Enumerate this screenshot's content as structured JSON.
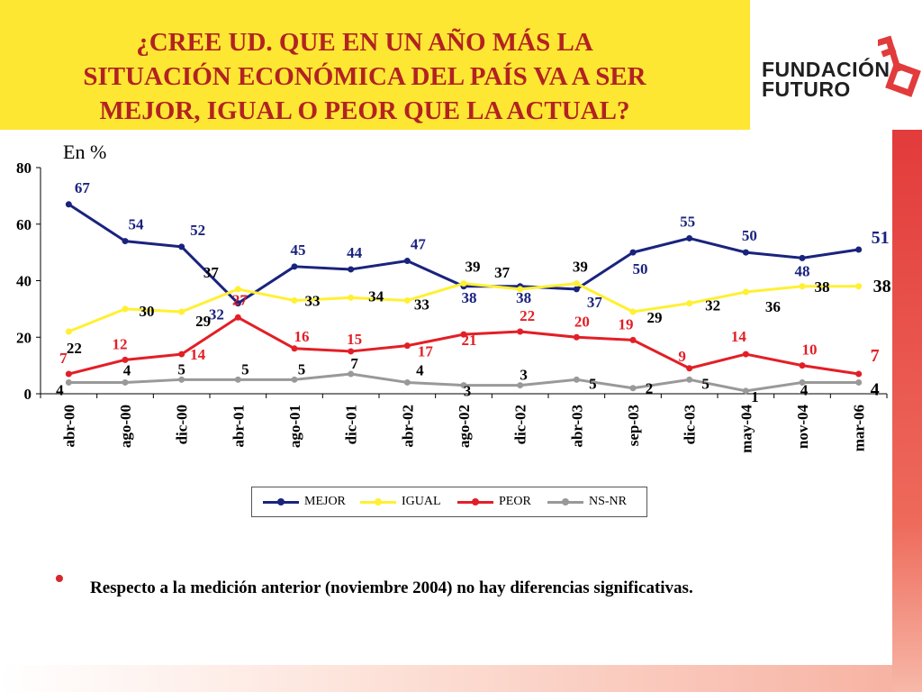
{
  "header": {
    "title_lines": [
      "¿CREE UD. QUE EN UN AÑO MÁS LA",
      "SITUACIÓN ECONÓMICA DEL PAÍS VA A SER",
      "MEJOR, IGUAL O PEOR QUE LA ACTUAL?"
    ],
    "logo_line1": "FUNDACIÓN",
    "logo_line2": "FUTURO"
  },
  "chart_data": {
    "type": "line",
    "unit_label": "En %",
    "categories": [
      "abr-00",
      "ago-00",
      "dic-00",
      "abr-01",
      "ago-01",
      "dic-01",
      "abr-02",
      "ago-02",
      "dic-02",
      "abr-03",
      "sep-03",
      "dic-03",
      "may-04",
      "nov-04",
      "mar-06"
    ],
    "ylim": [
      0,
      80
    ],
    "yticks": [
      0,
      20,
      40,
      60,
      80
    ],
    "grid": false,
    "legend_position": "bottom",
    "series": [
      {
        "name": "MEJOR",
        "color": "#1a237e",
        "label_color": "#1a237e",
        "values": [
          67,
          54,
          52,
          32,
          45,
          44,
          47,
          38,
          38,
          37,
          50,
          55,
          50,
          48,
          51
        ]
      },
      {
        "name": "IGUAL",
        "color": "#fff033",
        "label_color": "#000000",
        "values": [
          22,
          30,
          29,
          37,
          33,
          34,
          33,
          39,
          37,
          39,
          29,
          32,
          36,
          38,
          38
        ]
      },
      {
        "name": "PEOR",
        "color": "#e21f26",
        "label_color": "#e21f26",
        "values": [
          7,
          12,
          14,
          27,
          16,
          15,
          17,
          21,
          22,
          20,
          19,
          9,
          14,
          10,
          7
        ]
      },
      {
        "name": "NS-NR",
        "color": "#999999",
        "label_color": "#000000",
        "values": [
          4,
          4,
          5,
          5,
          5,
          7,
          4,
          3,
          3,
          5,
          2,
          5,
          1,
          4,
          4
        ]
      }
    ]
  },
  "footer": {
    "bullet": "•",
    "note": "Respecto a la medición anterior (noviembre 2004) no hay diferencias significativas."
  },
  "colors": {
    "title_bg": "#fde733",
    "title_text": "#b22222",
    "accent_red": "#e23b3b"
  }
}
